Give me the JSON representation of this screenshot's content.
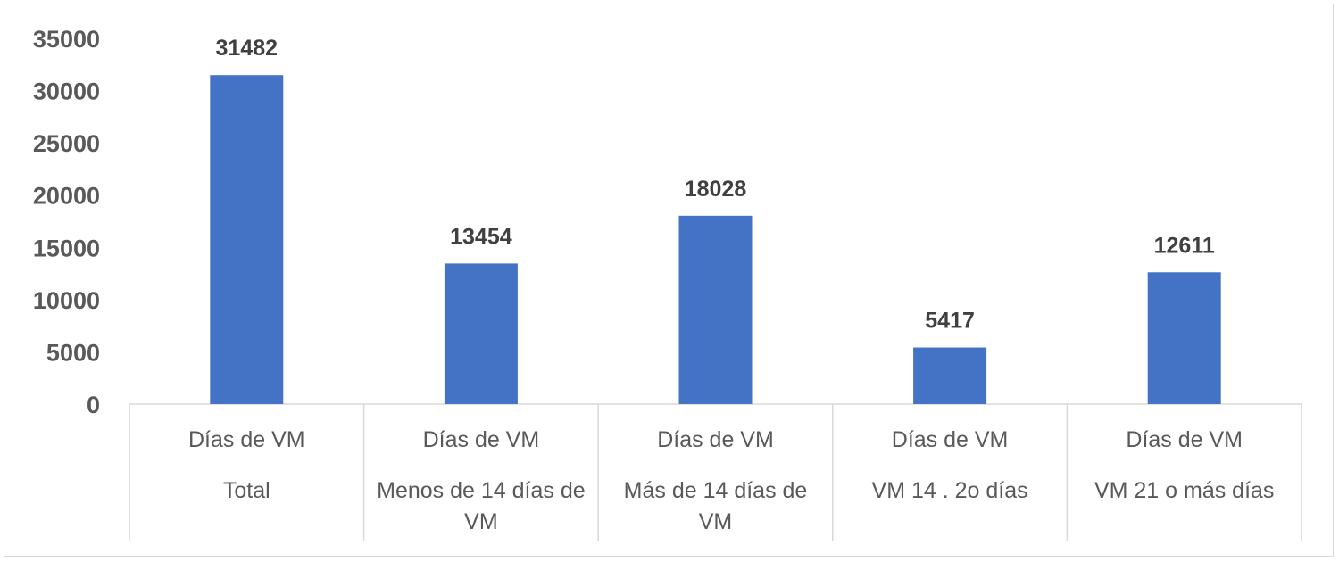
{
  "chart_data": {
    "type": "bar",
    "title": "",
    "xlabel": "",
    "ylabel": "",
    "ylim": [
      0,
      35000
    ],
    "yticks": [
      0,
      5000,
      10000,
      15000,
      20000,
      25000,
      30000,
      35000
    ],
    "grid": false,
    "legend": "none",
    "bar_color": "#4472c4",
    "categories": [
      {
        "level1": "Días de VM",
        "level2": [
          "Total"
        ]
      },
      {
        "level1": "Días de VM",
        "level2": [
          "Menos de 14 días de",
          "VM"
        ]
      },
      {
        "level1": "Días de VM",
        "level2": [
          "Más de 14 días de",
          "VM"
        ]
      },
      {
        "level1": "Días de VM",
        "level2": [
          "VM 14 . 2o días"
        ]
      },
      {
        "level1": "Días de VM",
        "level2": [
          "VM 21 o más días"
        ]
      }
    ],
    "values": [
      31482,
      13454,
      18028,
      5417,
      12611
    ],
    "data_labels": [
      "31482",
      "13454",
      "18028",
      "5417",
      "12611"
    ]
  }
}
